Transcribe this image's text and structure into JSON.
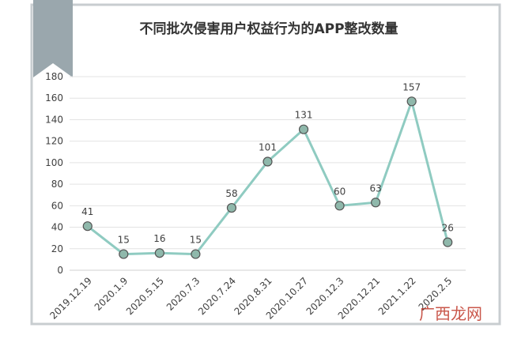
{
  "chart_data": {
    "type": "line",
    "title": "不同批次侵害用户权益行为的APP整改数量",
    "categories": [
      "2019.12.19",
      "2020.1.9",
      "2020.5.15",
      "2020.7.3",
      "2020.7.24",
      "2020.8.31",
      "2020.10.27",
      "2020.12.3",
      "2020.12.21",
      "2021.1.22",
      "2020.2.5"
    ],
    "series": [
      {
        "name": "APP整改数量",
        "color": "#8fcbc1",
        "values": [
          41,
          15,
          16,
          15,
          58,
          101,
          131,
          60,
          63,
          157,
          26
        ]
      }
    ],
    "ylim": [
      0,
      180
    ],
    "yticks": [
      0,
      20,
      40,
      60,
      80,
      100,
      120,
      140,
      160,
      180
    ],
    "grid": true,
    "watermark": "广西龙网"
  }
}
